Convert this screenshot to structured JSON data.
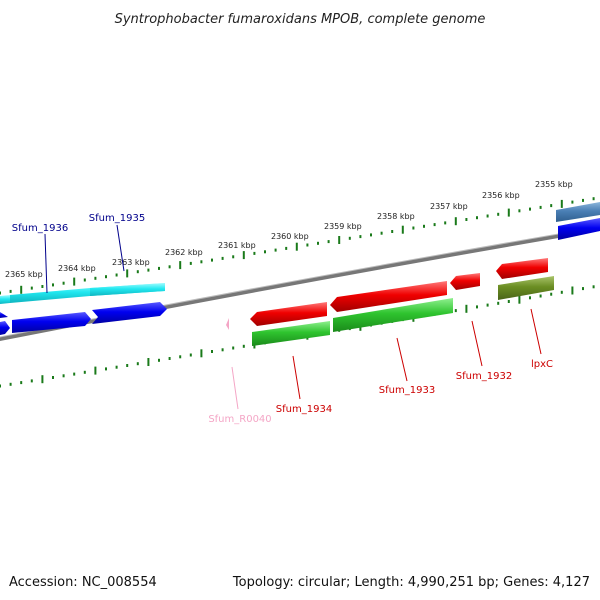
{
  "title": "Syntrophobacter fumaroxidans MPOB, complete genome",
  "footer": {
    "accession": "Accession: NC_008554",
    "summary": "Topology: circular; Length: 4,990,251 bp; Genes: 4,127"
  },
  "ticks": [
    "2365 kbp",
    "2364 kbp",
    "2363 kbp",
    "2362 kbp",
    "2361 kbp",
    "2360 kbp",
    "2359 kbp",
    "2358 kbp",
    "2357 kbp",
    "2356 kbp",
    "2355 kbp"
  ],
  "genes": [
    {
      "name": "Sfum_1936",
      "color": "#00008b"
    },
    {
      "name": "Sfum_1935",
      "color": "#00008b"
    },
    {
      "name": "Sfum_R0040",
      "color": "#f4a6c6"
    },
    {
      "name": "Sfum_1934",
      "color": "#cc0000"
    },
    {
      "name": "Sfum_1933",
      "color": "#cc0000"
    },
    {
      "name": "Sfum_1932",
      "color": "#cc0000"
    },
    {
      "name": "lpxC",
      "color": "#cc0000"
    }
  ],
  "colors": {
    "forward_cds": "#0000ff",
    "forward_orf": "#33ffff",
    "reverse_cds": "#ff0000",
    "reverse_orf": "#33cc33",
    "olive_feature": "#6b8e23",
    "steel_feature": "#4a7fb5",
    "rrna": "#f4a6c6",
    "backbone": "#888888",
    "tick_color": "#1a7a1a"
  }
}
